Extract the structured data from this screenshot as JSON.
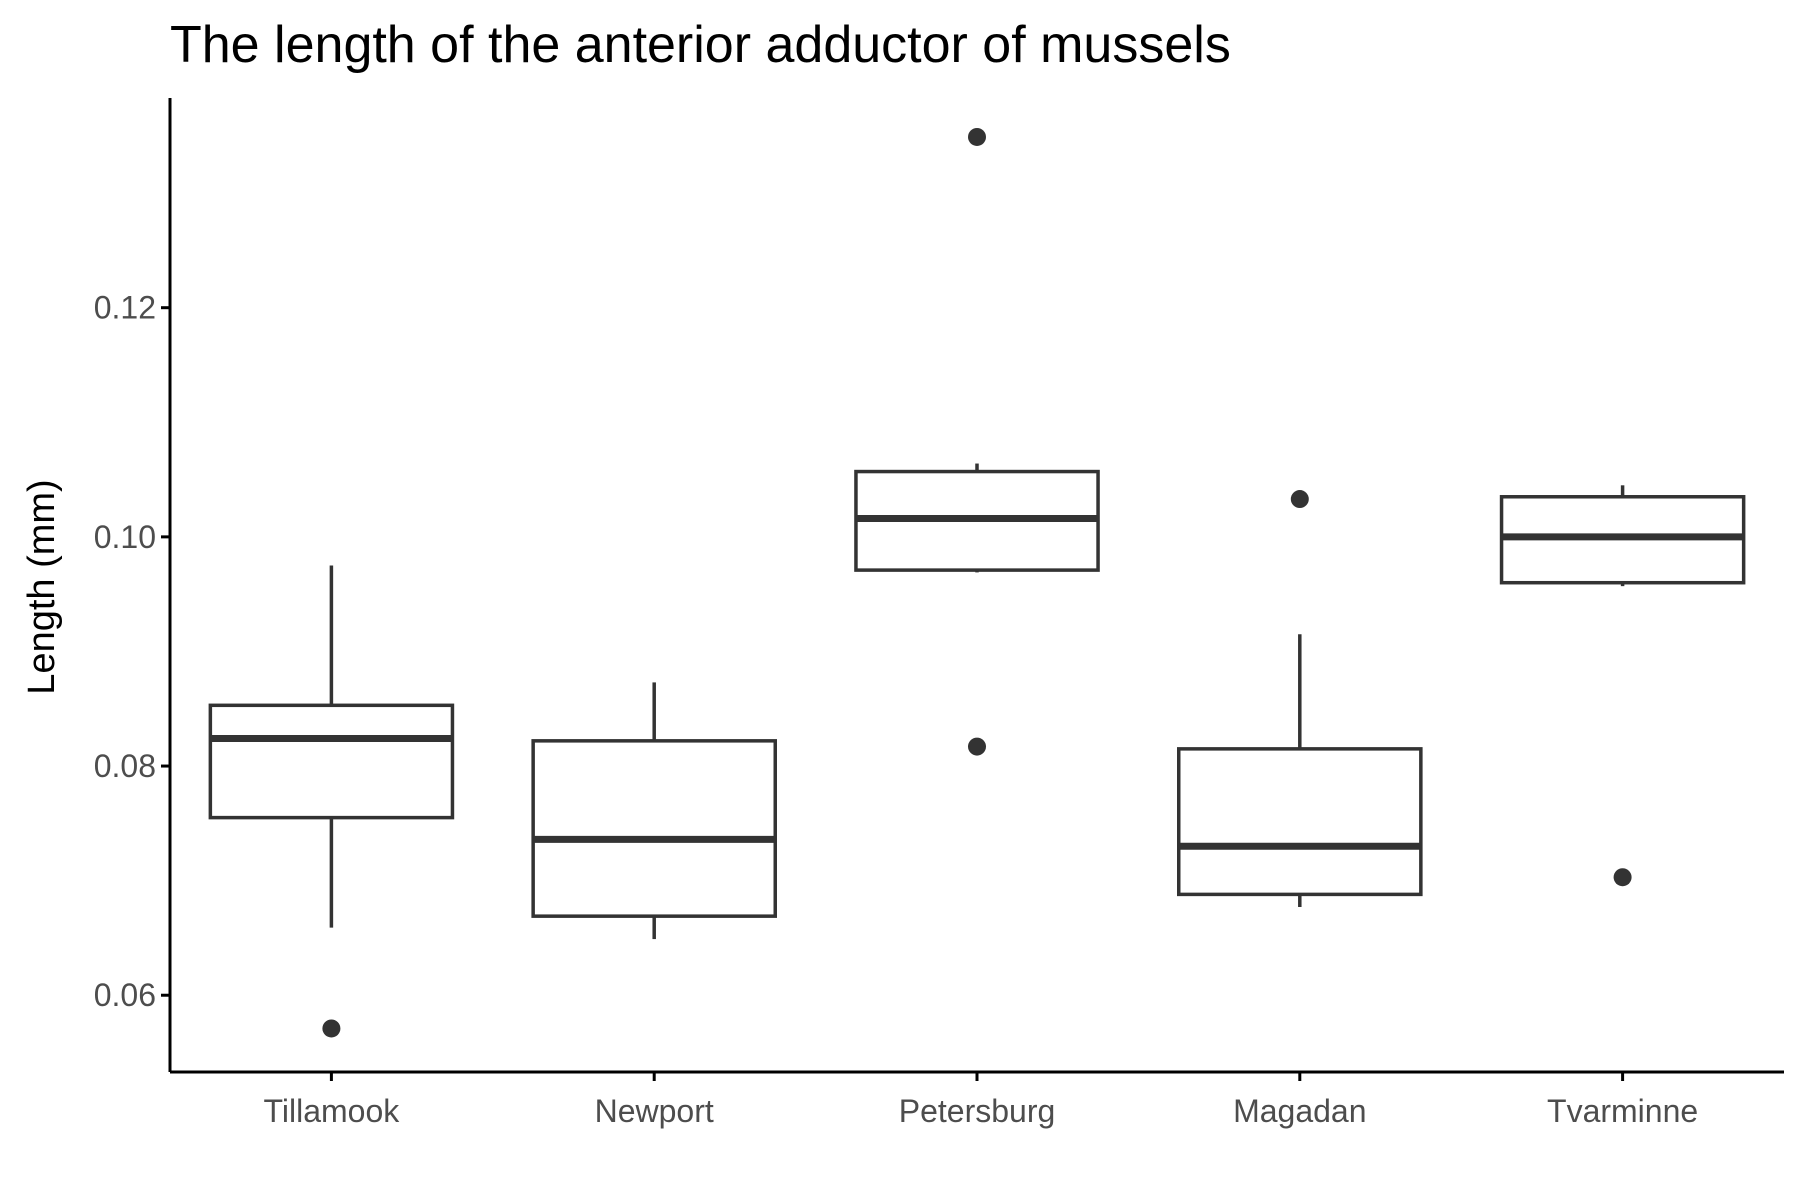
{
  "chart_data": {
    "type": "boxplot",
    "title": "The length of the anterior adductor of mussels",
    "xlabel": "",
    "ylabel": "Length (mm)",
    "ylim": [
      0.0533,
      0.1383
    ],
    "yticks": [
      0.06,
      0.08,
      0.1,
      0.12
    ],
    "ytick_labels": [
      "0.06",
      "0.08",
      "0.10",
      "0.12"
    ],
    "grid": false,
    "legend": "none",
    "colors": {
      "box_stroke": "#333333",
      "outlier": "#333333",
      "axis": "#000000",
      "tick_text": "#4d4d4d"
    },
    "categories": [
      "Tillamook",
      "Newport",
      "Petersburg",
      "Magadan",
      "Tvarminne"
    ],
    "boxes": [
      {
        "category": "Tillamook",
        "whisker_low": 0.0659,
        "q1": 0.0755,
        "median": 0.0824,
        "q3": 0.0853,
        "whisker_high": 0.0975,
        "outliers": [
          0.0571
        ]
      },
      {
        "category": "Newport",
        "whisker_low": 0.0649,
        "q1": 0.0669,
        "median": 0.0736,
        "q3": 0.0822,
        "whisker_high": 0.0873,
        "outliers": []
      },
      {
        "category": "Petersburg",
        "whisker_low": 0.0969,
        "q1": 0.0971,
        "median": 0.1016,
        "q3": 0.1057,
        "whisker_high": 0.1064,
        "outliers": [
          0.1349,
          0.0817
        ]
      },
      {
        "category": "Magadan",
        "whisker_low": 0.0677,
        "q1": 0.0688,
        "median": 0.073,
        "q3": 0.0815,
        "whisker_high": 0.0915,
        "outliers": [
          0.1033
        ]
      },
      {
        "category": "Tvarminne",
        "whisker_low": 0.0957,
        "q1": 0.096,
        "median": 0.1,
        "q3": 0.1035,
        "whisker_high": 0.1045,
        "outliers": [
          0.0703
        ]
      }
    ]
  }
}
